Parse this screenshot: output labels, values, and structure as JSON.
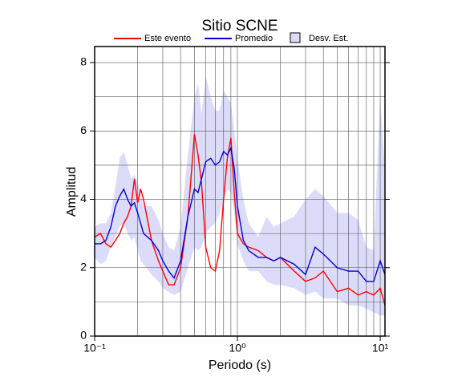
{
  "chart_data": {
    "type": "line",
    "title": "Sitio SCNE",
    "xlabel": "Periodo (s)",
    "ylabel": "Amplitud",
    "xscale": "log",
    "grid": true,
    "xlim": [
      0.1,
      10.8
    ],
    "ylim": [
      0,
      8.47
    ],
    "xticks": [
      {
        "value": 0.1,
        "label": "10⁻¹"
      },
      {
        "value": 1,
        "label": "10⁰"
      },
      {
        "value": 10,
        "label": "10¹"
      }
    ],
    "xminor": [
      0.2,
      0.3,
      0.4,
      0.5,
      0.6,
      0.7,
      0.8,
      0.9,
      2,
      3,
      4,
      5,
      6,
      7,
      8,
      9
    ],
    "yticks": [
      0,
      2,
      4,
      6,
      8
    ],
    "yminor": [
      1,
      3,
      5,
      7
    ],
    "x": [
      0.1,
      0.11,
      0.12,
      0.13,
      0.14,
      0.15,
      0.16,
      0.17,
      0.18,
      0.19,
      0.2,
      0.21,
      0.22,
      0.25,
      0.28,
      0.3,
      0.33,
      0.36,
      0.4,
      0.45,
      0.5,
      0.53,
      0.56,
      0.6,
      0.65,
      0.7,
      0.75,
      0.8,
      0.85,
      0.9,
      0.95,
      1.0,
      1.1,
      1.2,
      1.4,
      1.6,
      1.8,
      2,
      2.5,
      3,
      3.5,
      4,
      5,
      6,
      7,
      8,
      9,
      10,
      10.8
    ],
    "band": {
      "name": "Desv. Est.",
      "color": "#dcdcfa",
      "lower": [
        2.3,
        2.1,
        2.2,
        2.6,
        2.9,
        3.2,
        3.3,
        3.0,
        2.8,
        2.9,
        2.5,
        2.2,
        2.1,
        1.8,
        1.6,
        1.4,
        1.3,
        1.2,
        1.3,
        2.0,
        2.6,
        2.5,
        2.6,
        3.0,
        3.2,
        3.3,
        3.6,
        4.0,
        4.3,
        4.2,
        3.6,
        2.7,
        2.2,
        1.9,
        1.9,
        1.6,
        1.5,
        1.5,
        1.4,
        1.2,
        1.3,
        1.1,
        1.1,
        0.9,
        0.9,
        0.8,
        0.7,
        0.6,
        0.6
      ],
      "upper": [
        3.2,
        3.3,
        3.3,
        3.6,
        4.4,
        5.2,
        5.4,
        5.0,
        4.6,
        4.7,
        4.5,
        4.2,
        3.8,
        3.8,
        3.4,
        3.0,
        2.6,
        2.5,
        3.2,
        5.3,
        7.0,
        7.4,
        6.5,
        7.6,
        7.0,
        6.6,
        6.6,
        7.2,
        7.0,
        6.8,
        6.0,
        5.2,
        4.0,
        3.3,
        2.9,
        3.5,
        3.2,
        3.3,
        3.5,
        4.0,
        4.3,
        4.1,
        3.6,
        3.6,
        3.4,
        2.6,
        2.5,
        7.0,
        4.8
      ]
    },
    "series": [
      {
        "name": "Este evento",
        "color": "#ff0000",
        "values": [
          2.9,
          3.0,
          2.7,
          2.6,
          2.8,
          3.0,
          3.3,
          3.5,
          3.8,
          4.6,
          3.9,
          4.3,
          4.0,
          2.8,
          2.2,
          1.9,
          1.5,
          1.5,
          2.0,
          3.5,
          5.9,
          5.3,
          4.5,
          2.6,
          2.0,
          1.9,
          2.5,
          4.0,
          5.2,
          5.8,
          4.2,
          3.0,
          2.7,
          2.6,
          2.5,
          2.3,
          2.2,
          2.3,
          1.9,
          1.6,
          1.7,
          1.9,
          1.3,
          1.4,
          1.2,
          1.3,
          1.2,
          1.4,
          0.9
        ]
      },
      {
        "name": "Promedio",
        "color": "#0000dd",
        "values": [
          2.7,
          2.7,
          2.8,
          3.2,
          3.8,
          4.1,
          4.3,
          4.0,
          3.8,
          3.9,
          3.6,
          3.3,
          3.0,
          2.8,
          2.5,
          2.2,
          1.9,
          1.7,
          2.2,
          3.5,
          4.3,
          4.2,
          4.6,
          5.1,
          5.2,
          5.0,
          5.1,
          5.4,
          5.3,
          5.5,
          4.9,
          3.8,
          2.8,
          2.5,
          2.3,
          2.3,
          2.2,
          2.3,
          2.1,
          1.8,
          2.6,
          2.4,
          2.0,
          1.9,
          1.9,
          1.6,
          1.6,
          2.2,
          1.8
        ]
      }
    ]
  }
}
